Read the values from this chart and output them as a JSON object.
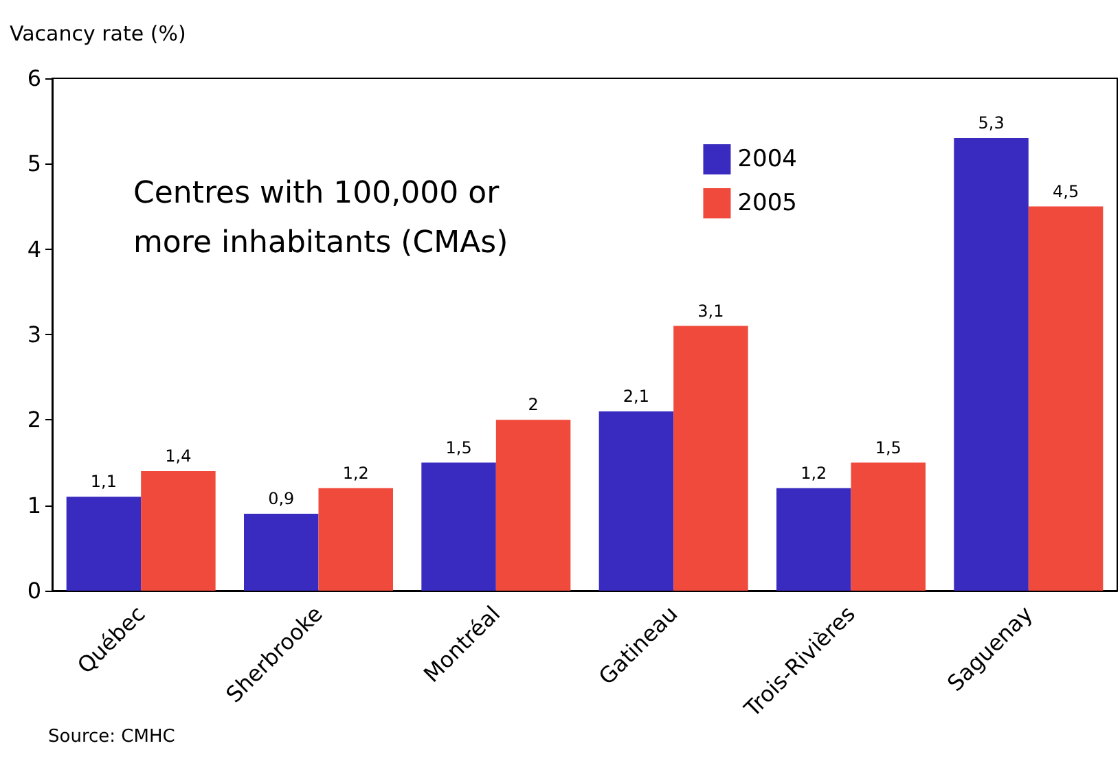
{
  "chart_data": {
    "type": "bar",
    "ylabel": "Vacancy rate (%)",
    "categories": [
      "Québec",
      "Sherbrooke",
      "Montréal",
      "Gatineau",
      "Trois-Rivières",
      "Saguenay"
    ],
    "series": [
      {
        "name": "2004",
        "color": "#3a2bc0",
        "values": [
          1.1,
          0.9,
          1.5,
          2.1,
          1.2,
          5.3
        ],
        "value_labels": [
          "1,1",
          "0,9",
          "1,5",
          "2,1",
          "1,2",
          "5,3"
        ]
      },
      {
        "name": "2005",
        "color": "#f04a3c",
        "values": [
          1.4,
          1.2,
          2,
          3.1,
          1.5,
          4.5
        ],
        "value_labels": [
          "1,4",
          "1,2",
          "2",
          "3,1",
          "1,5",
          "4,5"
        ]
      }
    ],
    "ylim": [
      0,
      6
    ],
    "yticks": [
      0,
      1,
      2,
      3,
      4,
      5,
      6
    ],
    "grid": false,
    "legend": "top right",
    "annotations": [
      "Centres with 100,000 or more inhabitants (CMAs)",
      "Source: CMHC"
    ]
  }
}
